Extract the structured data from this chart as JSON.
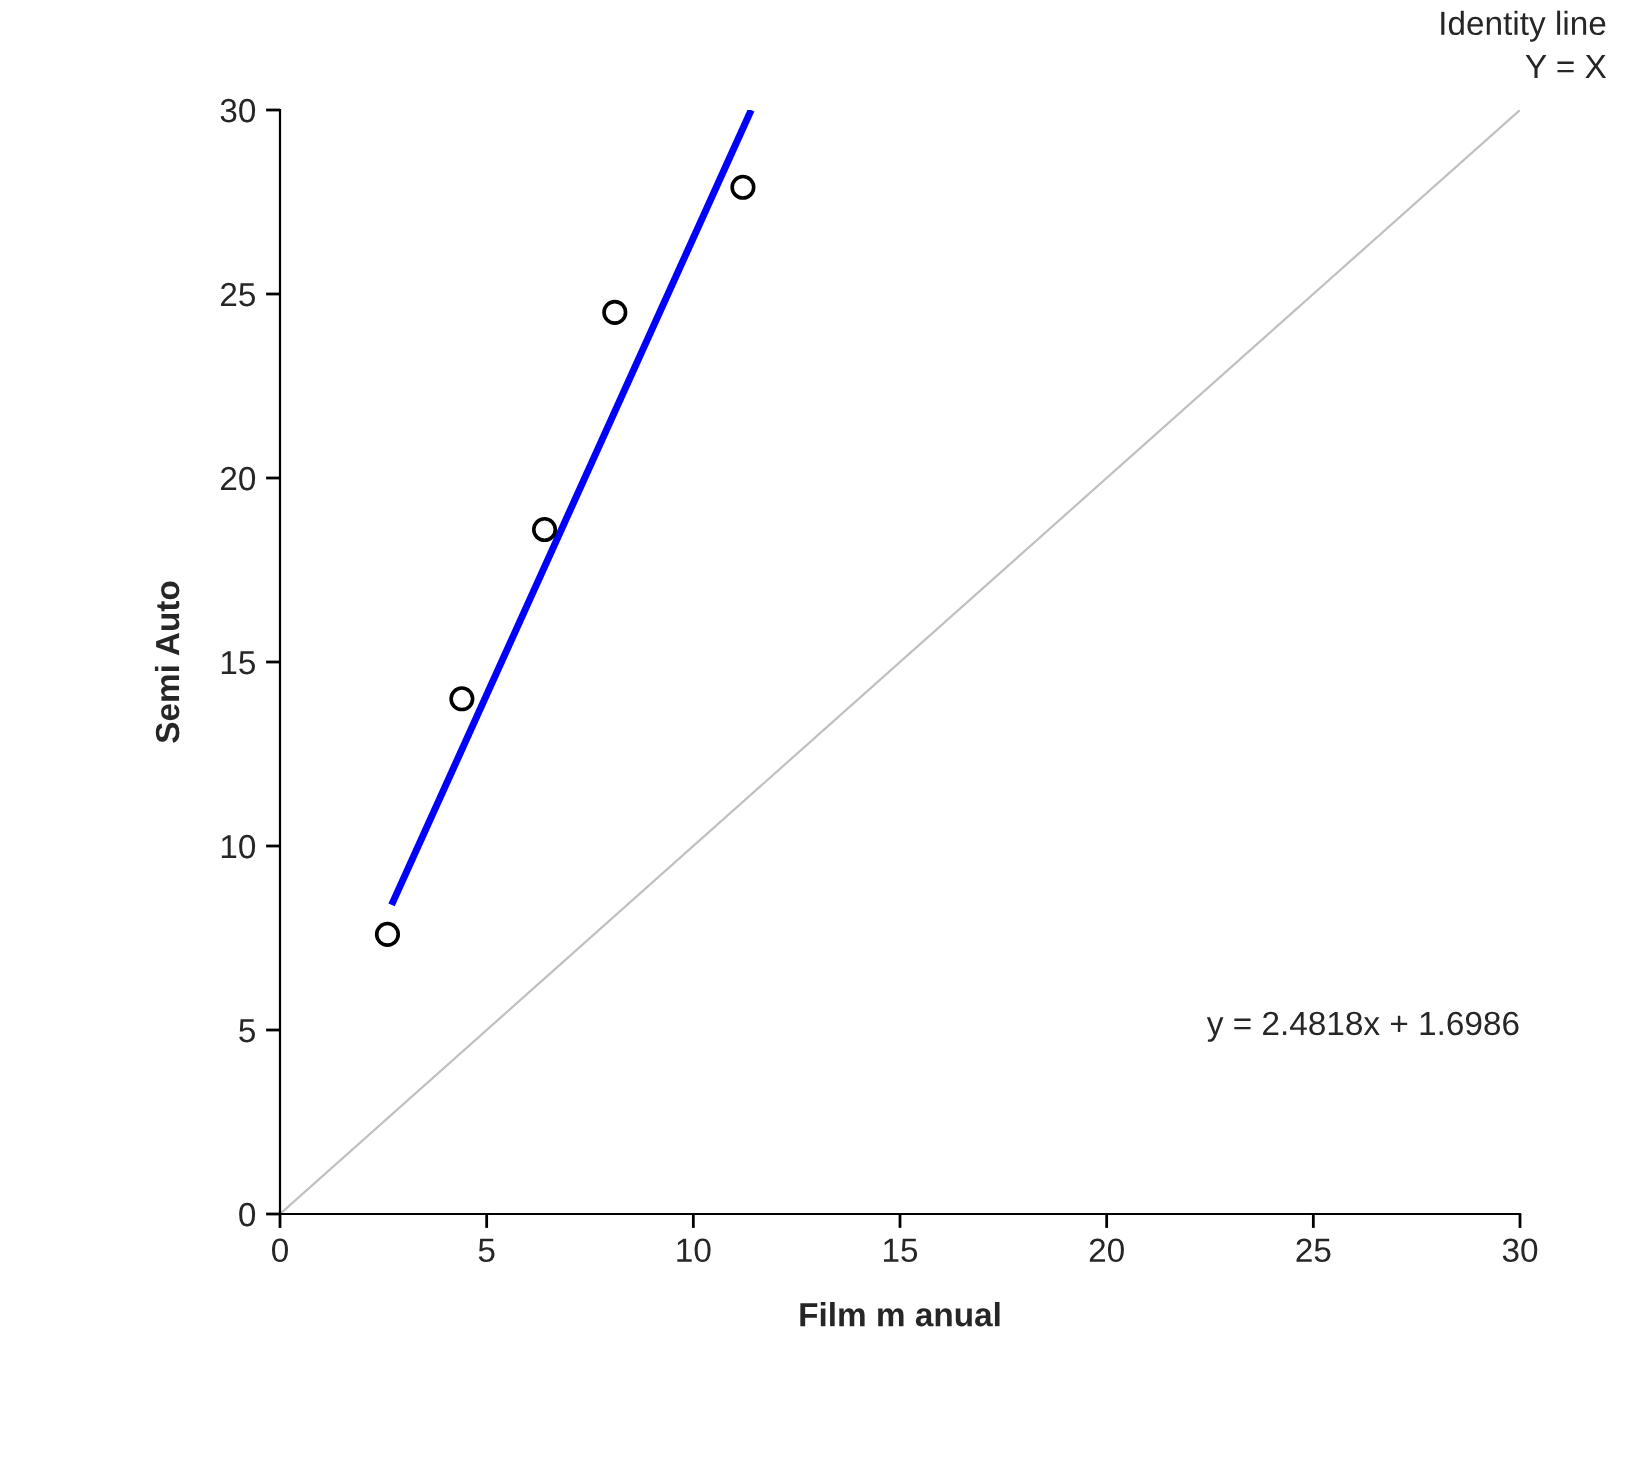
{
  "chart_data": {
    "type": "scatter",
    "xlabel": "Film m anual",
    "ylabel": "Semi Auto",
    "xlim": [
      0,
      30
    ],
    "ylim": [
      0,
      30
    ],
    "xticks": [
      0,
      5,
      10,
      15,
      20,
      25,
      30
    ],
    "yticks": [
      0,
      5,
      10,
      15,
      20,
      25,
      30
    ],
    "grid": false,
    "series": [
      {
        "type": "line",
        "color": "#c0c0c0",
        "x": [
          0,
          30
        ],
        "values": [
          0,
          30
        ],
        "line_style": "solid"
      },
      {
        "type": "line",
        "color": "#0000ff",
        "x": [
          2.7,
          11.4
        ],
        "values": [
          8.4,
          30
        ],
        "line_style": "solid"
      },
      {
        "marker": "circle",
        "color": "#000000",
        "x": [
          2.6,
          4.4,
          6.4,
          8.1,
          11.2
        ],
        "values": [
          7.6,
          14.0,
          18.6,
          24.5,
          27.9
        ]
      }
    ],
    "annotations": [
      "Identity line\nY = X",
      "y = 2.4818x + 1.6986"
    ]
  }
}
